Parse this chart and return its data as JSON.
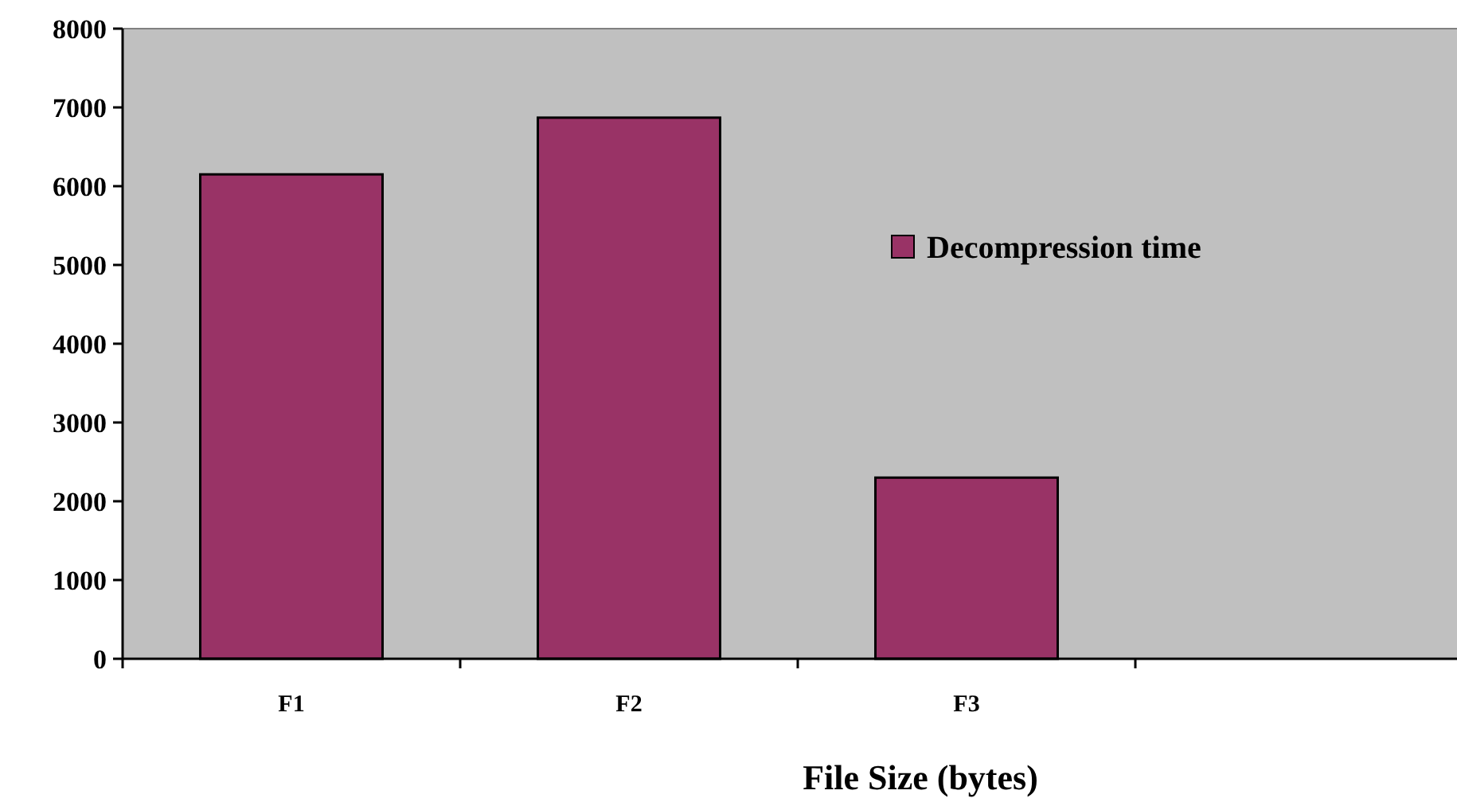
{
  "chart_data": {
    "type": "bar",
    "xlabel": "File Size (bytes)",
    "categories": [
      "F1",
      "F2",
      "F3",
      null
    ],
    "series": [
      {
        "name": "Decompression time",
        "color": "#993366",
        "values": [
          6150,
          6870,
          2300,
          null
        ]
      }
    ],
    "ylim": [
      0,
      8000
    ],
    "yticks": [
      0,
      1000,
      2000,
      3000,
      4000,
      5000,
      6000,
      7000,
      8000
    ],
    "grid": false,
    "legend": "right"
  }
}
